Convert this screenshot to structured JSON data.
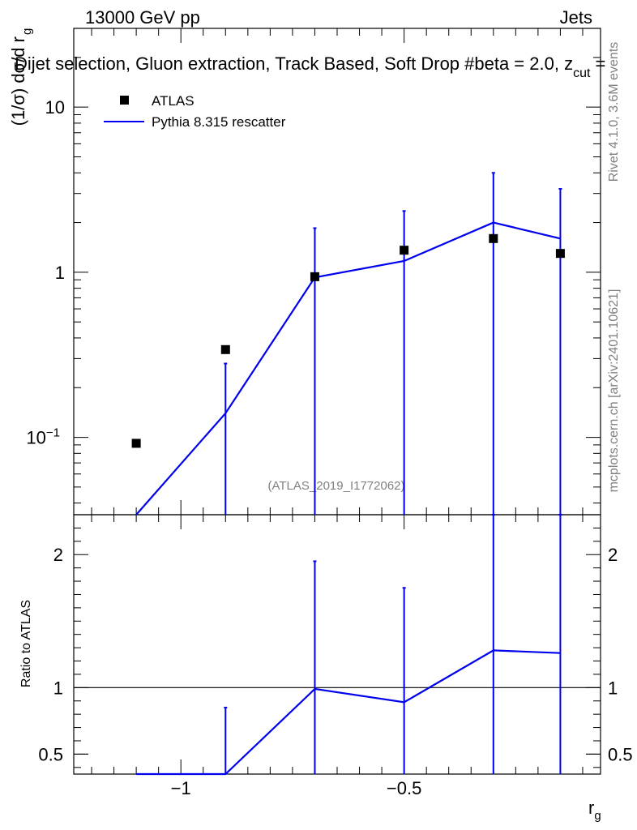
{
  "header": {
    "left": "13000 GeV pp",
    "right": "Jets",
    "analysis_title": "Dijet selection, Gluon extraction, Track Based, Soft Drop #beta = 2.0, z",
    "analysis_title_sub": "cut",
    "analysis_title_tail": " ="
  },
  "side_labels": {
    "rivet": "Rivet 4.1.0,  3.6M events",
    "mcplots": "mcplots.cern.ch [arXiv:2401.10621]"
  },
  "watermark": "(ATLAS_2019_I1772062)",
  "legend": {
    "data_label": "ATLAS",
    "mc_label": "Pythia 8.315 rescatter"
  },
  "colors": {
    "data": "#000000",
    "mc": "#0000ee",
    "grey": "#808080"
  },
  "chart_data": [
    {
      "type": "scatter",
      "panel": "main",
      "ylabel": "(1/σ) dσ/d r",
      "ylabel_sub": "g",
      "yscale": "log",
      "xlim": [
        -1.24,
        -0.06
      ],
      "ylim": [
        0.034,
        30
      ],
      "y_tick_labels": [
        {
          "value": 0.1,
          "base": "10",
          "exp": "−1"
        },
        {
          "value": 1,
          "base": "1",
          "exp": ""
        },
        {
          "value": 10,
          "base": "10",
          "exp": ""
        }
      ],
      "series": [
        {
          "name": "ATLAS",
          "style": "markers",
          "x": [
            -1.1,
            -0.9,
            -0.7,
            -0.5,
            -0.3,
            -0.15
          ],
          "y": [
            0.092,
            0.34,
            0.94,
            1.36,
            1.6,
            1.3
          ]
        },
        {
          "name": "Pythia 8.315 rescatter",
          "style": "line",
          "x": [
            -1.1,
            -0.9,
            -0.7,
            -0.5,
            -0.3,
            -0.15
          ],
          "y": [
            0.034,
            0.14,
            0.93,
            1.17,
            2.0,
            1.6
          ],
          "err_hi": [
            null,
            0.28,
            1.85,
            2.35,
            4.0,
            3.2
          ]
        }
      ]
    },
    {
      "type": "line",
      "panel": "ratio",
      "ylabel": "Ratio to ATLAS",
      "xlabel": "r",
      "xlabel_sub": "g",
      "xlim": [
        -1.24,
        -0.06
      ],
      "ylim": [
        0.35,
        2.3
      ],
      "reference": 1,
      "x_tick_labels": [
        {
          "value": -1,
          "label": "−1"
        },
        {
          "value": -0.5,
          "label": "−0.5"
        }
      ],
      "y_tick_labels": [
        {
          "value": 0.5,
          "label": "0.5"
        },
        {
          "value": 1,
          "label": "1"
        },
        {
          "value": 2,
          "label": "2"
        }
      ],
      "series": [
        {
          "name": "Pythia 8.315 rescatter / ATLAS",
          "x": [
            -1.1,
            -0.9,
            -0.7,
            -0.5,
            -0.3,
            -0.15
          ],
          "y": [
            0.35,
            0.35,
            0.99,
            0.89,
            1.28,
            1.26
          ],
          "err_hi": [
            null,
            0.85,
            1.95,
            1.75,
            2.3,
            2.3
          ]
        }
      ]
    }
  ]
}
